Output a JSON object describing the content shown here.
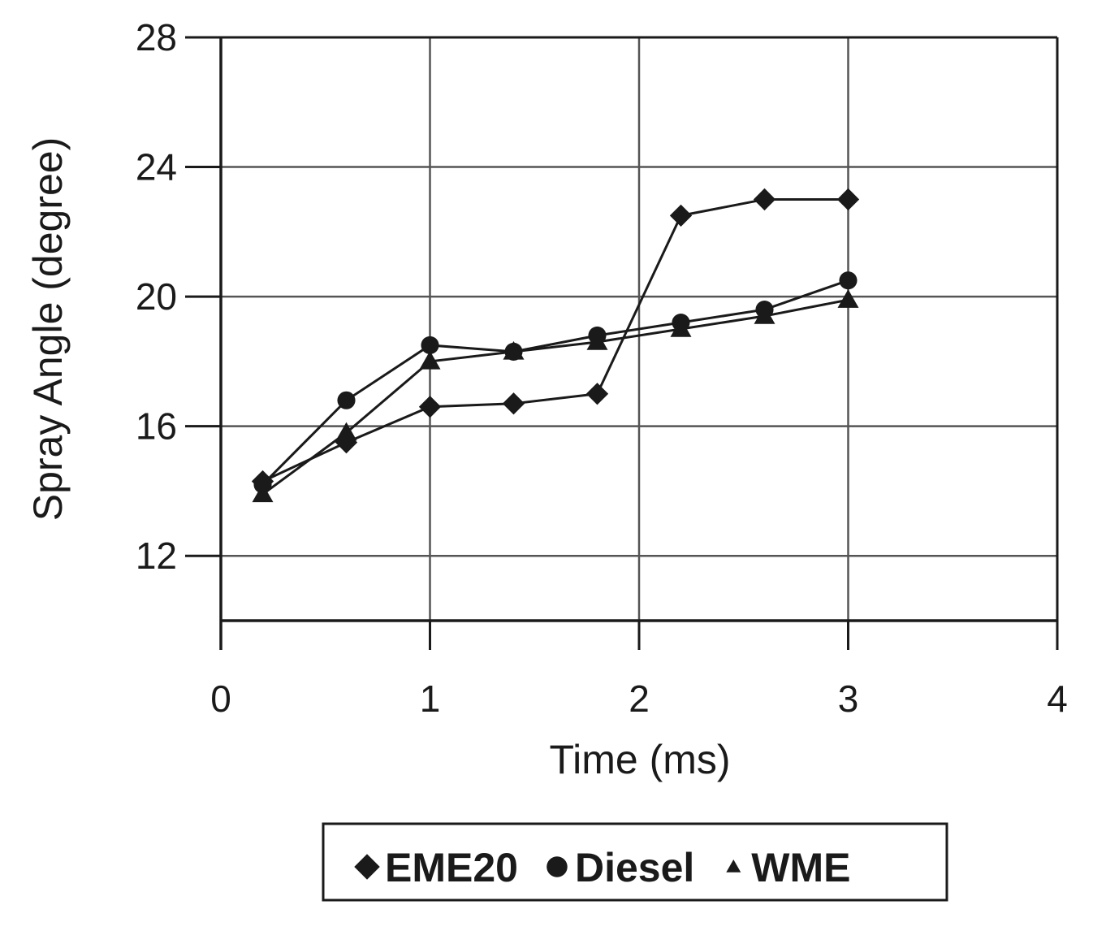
{
  "chart_data": {
    "type": "line",
    "title": "",
    "xlabel": "Time (ms)",
    "ylabel": "Spray Angle (degree)",
    "xlim": [
      0,
      4
    ],
    "ylim": [
      10,
      28
    ],
    "xticks": [
      "0",
      "1",
      "2",
      "3",
      "4"
    ],
    "yticks": [
      "12",
      "16",
      "20",
      "24",
      "28"
    ],
    "grid": true,
    "legend_position": "bottom",
    "series": [
      {
        "name": "EME20",
        "marker": "diamond",
        "x": [
          0.2,
          0.6,
          1.0,
          1.4,
          1.8,
          2.2,
          2.6,
          3.0
        ],
        "values": [
          14.3,
          15.5,
          16.6,
          16.7,
          17.0,
          22.5,
          23.0,
          23.0
        ]
      },
      {
        "name": "Diesel",
        "marker": "circle",
        "x": [
          0.2,
          0.6,
          1.0,
          1.4,
          1.8,
          2.2,
          2.6,
          3.0
        ],
        "values": [
          14.2,
          16.8,
          18.5,
          18.3,
          18.8,
          19.2,
          19.6,
          20.5
        ]
      },
      {
        "name": "WME",
        "marker": "triangle",
        "x": [
          0.2,
          0.6,
          1.0,
          1.4,
          1.8,
          2.2,
          2.6,
          3.0
        ],
        "values": [
          13.9,
          15.8,
          18.0,
          18.3,
          18.6,
          19.0,
          19.4,
          19.9
        ]
      }
    ]
  }
}
